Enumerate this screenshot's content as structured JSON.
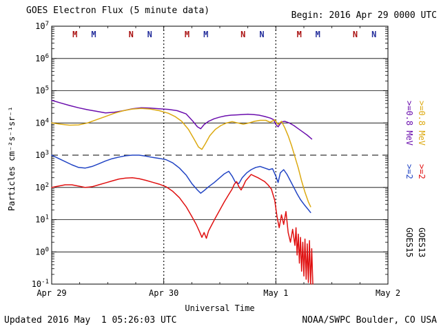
{
  "header": {
    "title": "GOES Electron Flux (5 minute data)",
    "begin": "Begin: 2016 Apr 29 0000 UTC"
  },
  "footer": {
    "updated": "Updated 2016 May  1 05:26:03 UTC",
    "source": "NOAA/SWPC Boulder, CO USA"
  },
  "axes": {
    "x_label": "Universal Time",
    "y_label": "Particles cm⁻²s⁻¹sr⁻¹"
  },
  "legend": {
    "columns": [
      {
        "satellite_label": "GOES15",
        "entries": [
          {
            "label": ">=0.8 MeV",
            "color": "#6a0dad"
          },
          {
            "label": ">=2",
            "color": "#2144c4"
          }
        ]
      },
      {
        "satellite_label": "GOES13",
        "entries": [
          {
            "label": ">=0.8 MeV",
            "color": "#dca910"
          },
          {
            "label": ">=2",
            "color": "#e01010"
          }
        ]
      }
    ]
  },
  "chart_data": {
    "type": "line",
    "title": "GOES Electron Flux (5 minute data)",
    "x_axis": {
      "label": "Universal Time",
      "tick_labels": [
        "Apr 29",
        "Apr 30",
        "May 1",
        "May 2"
      ],
      "units": "days since 2016 Apr 29 0000 UTC",
      "range_days": [
        0,
        3
      ]
    },
    "y_axis": {
      "label": "Particles cm⁻²s⁻¹sr⁻¹",
      "scale": "log10",
      "exponent_ticks": [
        7,
        6,
        5,
        4,
        3,
        2,
        1,
        0,
        -1
      ],
      "ylim_log10": [
        -1,
        7
      ]
    },
    "grid": true,
    "legend_position": "right",
    "threshold_dashed_log10": 3,
    "day_boundary_dotted": [
      1,
      2
    ],
    "noon_midnight_markers": [
      {
        "t": 0.208,
        "label": "M",
        "color": "#aa1111"
      },
      {
        "t": 0.375,
        "label": "M",
        "color": "#232d9b"
      },
      {
        "t": 0.708,
        "label": "N",
        "color": "#aa1111"
      },
      {
        "t": 0.875,
        "label": "N",
        "color": "#232d9b"
      },
      {
        "t": 1.208,
        "label": "M",
        "color": "#aa1111"
      },
      {
        "t": 1.375,
        "label": "M",
        "color": "#232d9b"
      },
      {
        "t": 1.708,
        "label": "N",
        "color": "#aa1111"
      },
      {
        "t": 1.875,
        "label": "N",
        "color": "#232d9b"
      },
      {
        "t": 2.208,
        "label": "M",
        "color": "#aa1111"
      },
      {
        "t": 2.375,
        "label": "M",
        "color": "#232d9b"
      },
      {
        "t": 2.708,
        "label": "N",
        "color": "#aa1111"
      },
      {
        "t": 2.875,
        "label": "N",
        "color": "#232d9b"
      }
    ],
    "series": [
      {
        "name": "GOES15 >=0.8 MeV",
        "color": "#6a0dad",
        "points_t_log10flux": [
          [
            0.0,
            4.7
          ],
          [
            0.08,
            4.62
          ],
          [
            0.16,
            4.54
          ],
          [
            0.24,
            4.47
          ],
          [
            0.32,
            4.41
          ],
          [
            0.4,
            4.36
          ],
          [
            0.48,
            4.31
          ],
          [
            0.56,
            4.33
          ],
          [
            0.64,
            4.38
          ],
          [
            0.72,
            4.44
          ],
          [
            0.8,
            4.47
          ],
          [
            0.88,
            4.46
          ],
          [
            0.96,
            4.44
          ],
          [
            1.04,
            4.42
          ],
          [
            1.12,
            4.38
          ],
          [
            1.2,
            4.28
          ],
          [
            1.26,
            4.05
          ],
          [
            1.3,
            3.88
          ],
          [
            1.33,
            3.82
          ],
          [
            1.36,
            3.95
          ],
          [
            1.4,
            4.05
          ],
          [
            1.45,
            4.13
          ],
          [
            1.5,
            4.18
          ],
          [
            1.55,
            4.22
          ],
          [
            1.6,
            4.24
          ],
          [
            1.65,
            4.25
          ],
          [
            1.7,
            4.26
          ],
          [
            1.75,
            4.27
          ],
          [
            1.8,
            4.26
          ],
          [
            1.85,
            4.24
          ],
          [
            1.9,
            4.2
          ],
          [
            1.95,
            4.15
          ],
          [
            1.98,
            4.1
          ],
          [
            2.0,
            3.95
          ],
          [
            2.02,
            3.88
          ],
          [
            2.05,
            4.03
          ],
          [
            2.08,
            4.05
          ],
          [
            2.12,
            4.0
          ],
          [
            2.16,
            3.92
          ],
          [
            2.2,
            3.82
          ],
          [
            2.24,
            3.72
          ],
          [
            2.28,
            3.62
          ],
          [
            2.32,
            3.5
          ]
        ]
      },
      {
        "name": "GOES13 >=0.8 MeV",
        "color": "#dca910",
        "points_t_log10flux": [
          [
            0.0,
            4.0
          ],
          [
            0.08,
            3.96
          ],
          [
            0.16,
            3.93
          ],
          [
            0.24,
            3.94
          ],
          [
            0.32,
            4.0
          ],
          [
            0.4,
            4.1
          ],
          [
            0.48,
            4.2
          ],
          [
            0.56,
            4.3
          ],
          [
            0.64,
            4.38
          ],
          [
            0.72,
            4.43
          ],
          [
            0.8,
            4.45
          ],
          [
            0.88,
            4.43
          ],
          [
            0.96,
            4.38
          ],
          [
            1.04,
            4.3
          ],
          [
            1.1,
            4.2
          ],
          [
            1.16,
            4.05
          ],
          [
            1.22,
            3.8
          ],
          [
            1.27,
            3.5
          ],
          [
            1.31,
            3.25
          ],
          [
            1.34,
            3.18
          ],
          [
            1.37,
            3.35
          ],
          [
            1.41,
            3.6
          ],
          [
            1.46,
            3.8
          ],
          [
            1.51,
            3.92
          ],
          [
            1.56,
            4.0
          ],
          [
            1.61,
            4.04
          ],
          [
            1.66,
            4.0
          ],
          [
            1.71,
            3.96
          ],
          [
            1.76,
            4.0
          ],
          [
            1.81,
            4.05
          ],
          [
            1.86,
            4.08
          ],
          [
            1.91,
            4.08
          ],
          [
            1.95,
            4.02
          ],
          [
            1.99,
            4.1
          ],
          [
            2.02,
            3.95
          ],
          [
            2.05,
            4.05
          ],
          [
            2.08,
            3.85
          ],
          [
            2.11,
            3.6
          ],
          [
            2.14,
            3.3
          ],
          [
            2.17,
            2.95
          ],
          [
            2.2,
            2.6
          ],
          [
            2.23,
            2.2
          ],
          [
            2.26,
            1.85
          ],
          [
            2.29,
            1.55
          ],
          [
            2.31,
            1.4
          ]
        ]
      },
      {
        "name": "GOES15 >=2 MeV",
        "color": "#2144c4",
        "points_t_log10flux": [
          [
            0.0,
            3.0
          ],
          [
            0.06,
            2.9
          ],
          [
            0.12,
            2.8
          ],
          [
            0.18,
            2.7
          ],
          [
            0.24,
            2.62
          ],
          [
            0.3,
            2.6
          ],
          [
            0.36,
            2.65
          ],
          [
            0.42,
            2.73
          ],
          [
            0.48,
            2.82
          ],
          [
            0.54,
            2.89
          ],
          [
            0.6,
            2.94
          ],
          [
            0.66,
            2.98
          ],
          [
            0.72,
            3.0
          ],
          [
            0.78,
            3.0
          ],
          [
            0.84,
            2.97
          ],
          [
            0.9,
            2.93
          ],
          [
            0.96,
            2.9
          ],
          [
            1.02,
            2.86
          ],
          [
            1.08,
            2.76
          ],
          [
            1.14,
            2.6
          ],
          [
            1.2,
            2.38
          ],
          [
            1.25,
            2.12
          ],
          [
            1.3,
            1.92
          ],
          [
            1.33,
            1.82
          ],
          [
            1.36,
            1.9
          ],
          [
            1.4,
            2.02
          ],
          [
            1.45,
            2.15
          ],
          [
            1.5,
            2.3
          ],
          [
            1.54,
            2.42
          ],
          [
            1.58,
            2.5
          ],
          [
            1.61,
            2.35
          ],
          [
            1.64,
            2.15
          ],
          [
            1.67,
            2.12
          ],
          [
            1.7,
            2.3
          ],
          [
            1.74,
            2.45
          ],
          [
            1.78,
            2.55
          ],
          [
            1.82,
            2.62
          ],
          [
            1.86,
            2.65
          ],
          [
            1.9,
            2.6
          ],
          [
            1.94,
            2.55
          ],
          [
            1.97,
            2.58
          ],
          [
            2.0,
            2.35
          ],
          [
            2.02,
            2.15
          ],
          [
            2.04,
            2.45
          ],
          [
            2.07,
            2.55
          ],
          [
            2.1,
            2.4
          ],
          [
            2.13,
            2.2
          ],
          [
            2.16,
            2.0
          ],
          [
            2.19,
            1.8
          ],
          [
            2.22,
            1.62
          ],
          [
            2.25,
            1.48
          ],
          [
            2.28,
            1.35
          ],
          [
            2.31,
            1.22
          ]
        ]
      },
      {
        "name": "GOES13 >=2 MeV",
        "color": "#e01010",
        "points_t_log10flux": [
          [
            0.0,
            2.0
          ],
          [
            0.06,
            2.04
          ],
          [
            0.12,
            2.08
          ],
          [
            0.18,
            2.08
          ],
          [
            0.24,
            2.04
          ],
          [
            0.3,
            2.0
          ],
          [
            0.36,
            2.02
          ],
          [
            0.42,
            2.08
          ],
          [
            0.48,
            2.14
          ],
          [
            0.54,
            2.2
          ],
          [
            0.6,
            2.26
          ],
          [
            0.66,
            2.29
          ],
          [
            0.72,
            2.3
          ],
          [
            0.78,
            2.27
          ],
          [
            0.84,
            2.22
          ],
          [
            0.9,
            2.16
          ],
          [
            0.96,
            2.1
          ],
          [
            1.02,
            2.02
          ],
          [
            1.08,
            1.88
          ],
          [
            1.14,
            1.68
          ],
          [
            1.2,
            1.4
          ],
          [
            1.25,
            1.1
          ],
          [
            1.29,
            0.85
          ],
          [
            1.32,
            0.62
          ],
          [
            1.34,
            0.45
          ],
          [
            1.36,
            0.6
          ],
          [
            1.38,
            0.42
          ],
          [
            1.4,
            0.65
          ],
          [
            1.43,
            0.85
          ],
          [
            1.46,
            1.05
          ],
          [
            1.5,
            1.3
          ],
          [
            1.54,
            1.55
          ],
          [
            1.58,
            1.78
          ],
          [
            1.61,
            1.95
          ],
          [
            1.63,
            2.1
          ],
          [
            1.65,
            2.18
          ],
          [
            1.67,
            2.02
          ],
          [
            1.69,
            1.92
          ],
          [
            1.71,
            2.05
          ],
          [
            1.73,
            2.2
          ],
          [
            1.76,
            2.32
          ],
          [
            1.78,
            2.4
          ],
          [
            1.81,
            2.35
          ],
          [
            1.84,
            2.3
          ],
          [
            1.87,
            2.24
          ],
          [
            1.9,
            2.18
          ],
          [
            1.93,
            2.08
          ],
          [
            1.96,
            1.95
          ],
          [
            1.99,
            1.6
          ],
          [
            2.01,
            1.1
          ],
          [
            2.03,
            0.75
          ],
          [
            2.05,
            1.15
          ],
          [
            2.07,
            0.85
          ],
          [
            2.09,
            1.25
          ],
          [
            2.11,
            0.6
          ],
          [
            2.13,
            0.3
          ],
          [
            2.15,
            0.7
          ],
          [
            2.17,
            0.2
          ],
          [
            2.18,
            0.75
          ],
          [
            2.19,
            -0.1
          ],
          [
            2.2,
            0.55
          ],
          [
            2.21,
            -0.35
          ],
          [
            2.22,
            0.45
          ],
          [
            2.23,
            -0.6
          ],
          [
            2.24,
            0.3
          ],
          [
            2.25,
            -0.75
          ],
          [
            2.26,
            0.4
          ],
          [
            2.27,
            -0.85
          ],
          [
            2.28,
            0.25
          ],
          [
            2.29,
            -0.95
          ],
          [
            2.3,
            0.35
          ],
          [
            2.31,
            -1.0
          ],
          [
            2.32,
            0.1
          ],
          [
            2.33,
            -1.0
          ]
        ]
      }
    ]
  }
}
